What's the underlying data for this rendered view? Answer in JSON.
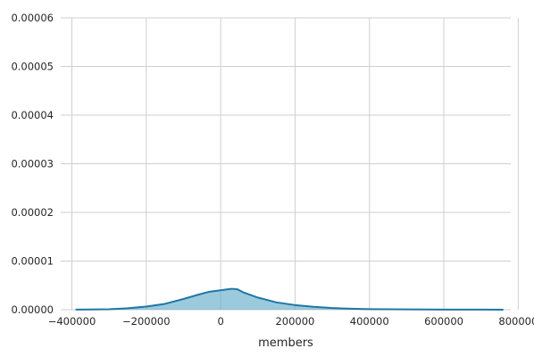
{
  "chart_data": {
    "type": "area",
    "title": "",
    "xlabel": "members",
    "ylabel": "",
    "xlim": [
      -430000,
      780000
    ],
    "ylim": [
      0,
      6e-05
    ],
    "grid": true,
    "legend": "none",
    "colors": {
      "line": "#1f77a4",
      "fill": "#5aa7c6",
      "grid": "#cfcfcf",
      "background": "#ffffff"
    },
    "xticks": [
      {
        "value": -400000,
        "label": "−400000"
      },
      {
        "value": -200000,
        "label": "−200000"
      },
      {
        "value": 0,
        "label": "0"
      },
      {
        "value": 200000,
        "label": "200000"
      },
      {
        "value": 400000,
        "label": "400000"
      },
      {
        "value": 600000,
        "label": "600000"
      },
      {
        "value": 800000,
        "label": "800000"
      }
    ],
    "yticks": [
      {
        "value": 0,
        "label": "0.00000"
      },
      {
        "value": 1e-05,
        "label": "0.00001"
      },
      {
        "value": 2e-05,
        "label": "0.00002"
      },
      {
        "value": 3e-05,
        "label": "0.00003"
      },
      {
        "value": 4e-05,
        "label": "0.00004"
      },
      {
        "value": 5e-05,
        "label": "0.00005"
      },
      {
        "value": 6e-05,
        "label": "0.00006"
      }
    ],
    "series": [
      {
        "x": [
          -390000,
          -350000,
          -300000,
          -250000,
          -200000,
          -150000,
          -100000,
          -60000,
          -30000,
          0,
          20000,
          30000,
          45000,
          60000,
          100000,
          150000,
          200000,
          250000,
          300000,
          350000,
          400000,
          500000,
          600000,
          700000,
          760000
        ],
        "values": [
          2e-08,
          4e-08,
          1e-07,
          3e-07,
          6.5e-07,
          1.2e-06,
          2.2e-06,
          3.1e-06,
          3.7e-06,
          4e-06,
          4.2e-06,
          4.3e-06,
          4.2e-06,
          3.6e-06,
          2.5e-06,
          1.5e-06,
          9.5e-07,
          6e-07,
          3.5e-07,
          2e-07,
          1.2e-07,
          6e-08,
          3e-08,
          2e-08,
          1e-08
        ]
      }
    ]
  }
}
